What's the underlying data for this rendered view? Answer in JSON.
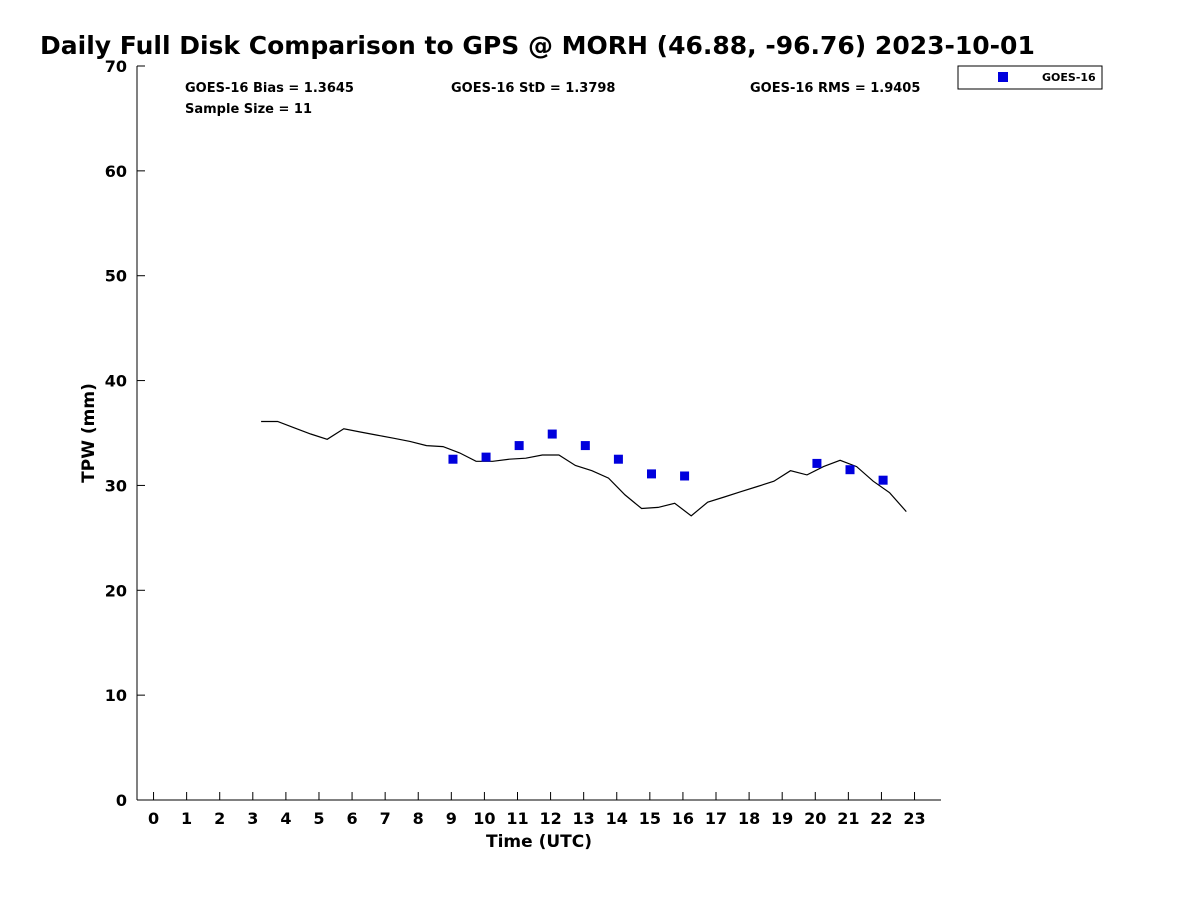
{
  "chart_data": {
    "type": "line",
    "title": "Daily Full Disk Comparison to GPS @ MORH (46.88, -96.76) 2023-10-01",
    "xlabel": "Time (UTC)",
    "ylabel": "TPW (mm)",
    "xlim": [
      -0.5,
      23.8
    ],
    "ylim": [
      0,
      70
    ],
    "x_ticks": [
      0,
      1,
      2,
      3,
      4,
      5,
      6,
      7,
      8,
      9,
      10,
      11,
      12,
      13,
      14,
      15,
      16,
      17,
      18,
      19,
      20,
      21,
      22,
      23
    ],
    "y_ticks": [
      0,
      10,
      20,
      30,
      40,
      50,
      60,
      70
    ],
    "grid": false,
    "legend_position": "top-right, outside plot",
    "stats": {
      "bias": "GOES-16 Bias = 1.3645",
      "std": "GOES-16 StD = 1.3798",
      "rms": "GOES-16 RMS = 1.9405",
      "sample": "Sample Size = 11"
    },
    "series": [
      {
        "kind": "line",
        "color": "#000000",
        "x": [
          3.25,
          3.75,
          4.25,
          4.75,
          5.25,
          5.75,
          6.25,
          6.75,
          7.25,
          7.75,
          8.25,
          8.75,
          9.25,
          9.75,
          10.25,
          10.75,
          11.25,
          11.75,
          12.25,
          12.75,
          13.25,
          13.75,
          14.25,
          14.75,
          15.25,
          15.75,
          16.25,
          16.75,
          17.25,
          17.75,
          18.25,
          18.75,
          19.25,
          19.75,
          20.25,
          20.75,
          21.25,
          21.75,
          22.25,
          22.75
        ],
        "y": [
          36.1,
          36.1,
          35.5,
          34.9,
          34.4,
          35.4,
          35.1,
          34.8,
          34.5,
          34.2,
          33.8,
          33.7,
          33.1,
          32.3,
          32.3,
          32.5,
          32.6,
          32.9,
          32.9,
          31.9,
          31.4,
          30.7,
          29.1,
          27.8,
          27.9,
          28.3,
          27.1,
          28.4,
          28.9,
          29.4,
          29.9,
          30.4,
          31.4,
          31.0,
          31.8,
          32.4,
          31.8,
          30.4,
          29.3,
          27.5
        ]
      },
      {
        "name": "GOES-16",
        "kind": "scatter",
        "color": "#0000dd",
        "x": [
          9.05,
          10.05,
          11.05,
          12.05,
          13.05,
          14.05,
          15.05,
          16.05,
          20.05,
          21.05,
          22.05
        ],
        "y": [
          32.5,
          32.7,
          33.8,
          34.9,
          33.8,
          32.5,
          31.1,
          30.9,
          32.1,
          31.5,
          30.5
        ]
      }
    ]
  }
}
